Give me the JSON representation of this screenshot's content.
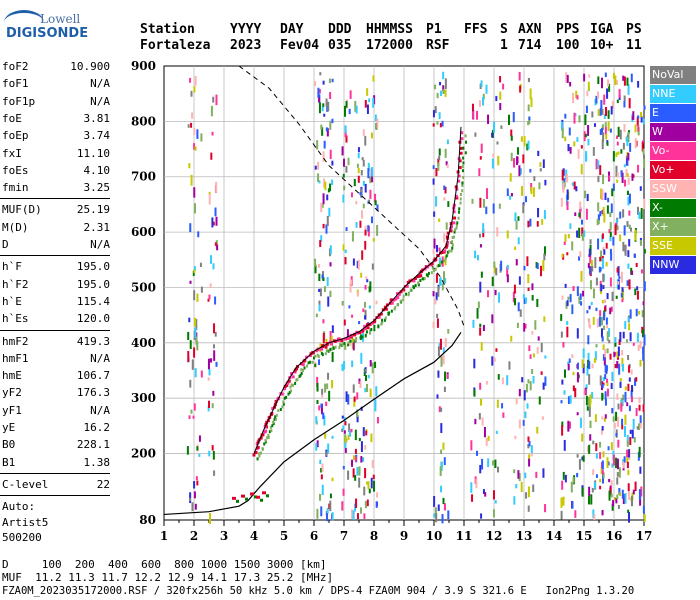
{
  "logo": {
    "top": "Lowell",
    "bottom": "DIGISONDE"
  },
  "header": {
    "labels": [
      "Station",
      "YYYY",
      "DAY",
      "DDD",
      "HHMMSS",
      "P1",
      "FFS",
      "S",
      "AXN",
      "PPS",
      "IGA",
      "PS"
    ],
    "values": [
      "Fortaleza",
      "2023",
      "Fev04",
      "035",
      "172000",
      "RSF",
      "",
      "1",
      "714",
      "100",
      "10+",
      "11"
    ]
  },
  "params": {
    "group1": [
      {
        "k": "foF2",
        "v": "10.900"
      },
      {
        "k": "foF1",
        "v": "N/A"
      },
      {
        "k": "foF1p",
        "v": "N/A"
      },
      {
        "k": "foE",
        "v": "3.81"
      },
      {
        "k": "foEp",
        "v": "3.74"
      },
      {
        "k": "fxI",
        "v": "11.10"
      },
      {
        "k": "foEs",
        "v": "4.10"
      },
      {
        "k": "fmin",
        "v": "3.25"
      }
    ],
    "group2": [
      {
        "k": "MUF(D)",
        "v": "25.19"
      },
      {
        "k": "M(D)",
        "v": "2.31"
      },
      {
        "k": "D",
        "v": "N/A"
      }
    ],
    "group3": [
      {
        "k": "h`F",
        "v": "195.0"
      },
      {
        "k": "h`F2",
        "v": "195.0"
      },
      {
        "k": "h`E",
        "v": "115.4"
      },
      {
        "k": "h`Es",
        "v": "120.0"
      }
    ],
    "group4": [
      {
        "k": "hmF2",
        "v": "419.3"
      },
      {
        "k": "hmF1",
        "v": "N/A"
      },
      {
        "k": "hmE",
        "v": "106.7"
      },
      {
        "k": "yF2",
        "v": "176.3"
      },
      {
        "k": "yF1",
        "v": "N/A"
      },
      {
        "k": "yE",
        "v": "16.2"
      },
      {
        "k": "B0",
        "v": "228.1"
      },
      {
        "k": "B1",
        "v": "1.38"
      }
    ],
    "clevel": {
      "k": "C-level",
      "v": "22"
    },
    "auto": [
      "Auto:",
      "Artist5",
      "500200"
    ]
  },
  "legend": [
    {
      "label": "NoVal",
      "color": "#808080"
    },
    {
      "label": "NNE",
      "color": "#33ccff"
    },
    {
      "label": "E",
      "color": "#2a5cff"
    },
    {
      "label": "W",
      "color": "#a000a0"
    },
    {
      "label": "Vo-",
      "color": "#ff3399"
    },
    {
      "label": "Vo+",
      "color": "#e0002a"
    },
    {
      "label": "SSW",
      "color": "#ffb3b3"
    },
    {
      "label": "X-",
      "color": "#007a00"
    },
    {
      "label": "X+",
      "color": "#80b060"
    },
    {
      "label": "SSE",
      "color": "#c8c800"
    },
    {
      "label": "NNW",
      "color": "#2a2ae0"
    }
  ],
  "footer": {
    "line1": "D     100  200  400  600  800 1000 1500 3000 [km]",
    "line2": "MUF  11.2 11.3 11.7 12.2 12.9 14.1 17.3 25.2 [MHz]",
    "line3": "FZA0M_2023035172000.RSF / 320fx256h 50 kHz 5.0 km / DPS-4 FZA0M 904 / 3.9 S 321.6 E   Ion2Png 1.3.20"
  },
  "chart_data": {
    "type": "scatter",
    "title": "",
    "xlabel": "",
    "ylabel": "",
    "xlim": [
      1,
      17
    ],
    "ylim": [
      80,
      900
    ],
    "xticks": [
      1,
      2,
      3,
      4,
      5,
      6,
      7,
      8,
      9,
      10,
      11,
      12,
      13,
      14,
      15,
      16,
      17
    ],
    "yticks": [
      80,
      200,
      300,
      400,
      500,
      600,
      700,
      800,
      900
    ],
    "grid": true,
    "traces": [
      {
        "f": 4.0,
        "h": 200
      },
      {
        "f": 4.3,
        "h": 240
      },
      {
        "f": 4.6,
        "h": 275
      },
      {
        "f": 5.0,
        "h": 320
      },
      {
        "f": 5.4,
        "h": 355
      },
      {
        "f": 6.0,
        "h": 385
      },
      {
        "f": 6.5,
        "h": 400
      },
      {
        "f": 7.0,
        "h": 408
      },
      {
        "f": 7.5,
        "h": 420
      },
      {
        "f": 8.0,
        "h": 440
      },
      {
        "f": 8.5,
        "h": 470
      },
      {
        "f": 9.0,
        "h": 500
      },
      {
        "f": 9.5,
        "h": 525
      },
      {
        "f": 10.0,
        "h": 548
      },
      {
        "f": 10.4,
        "h": 575
      },
      {
        "f": 10.6,
        "h": 620
      },
      {
        "f": 10.8,
        "h": 700
      },
      {
        "f": 10.9,
        "h": 790
      }
    ],
    "es_trace": [
      {
        "f": 3.3,
        "h": 120
      },
      {
        "f": 3.6,
        "h": 124
      },
      {
        "f": 3.9,
        "h": 128
      },
      {
        "f": 4.1,
        "h": 122
      },
      {
        "f": 4.3,
        "h": 130
      }
    ],
    "profile": [
      {
        "f": 1.0,
        "h": 90
      },
      {
        "f": 2.5,
        "h": 95
      },
      {
        "f": 3.5,
        "h": 105
      },
      {
        "f": 3.8,
        "h": 115
      },
      {
        "f": 4.2,
        "h": 140
      },
      {
        "f": 5.0,
        "h": 185
      },
      {
        "f": 6.0,
        "h": 225
      },
      {
        "f": 7.0,
        "h": 260
      },
      {
        "f": 8.0,
        "h": 298
      },
      {
        "f": 9.0,
        "h": 335
      },
      {
        "f": 10.0,
        "h": 365
      },
      {
        "f": 10.6,
        "h": 395
      },
      {
        "f": 10.9,
        "h": 419
      }
    ],
    "muf_curve": [
      {
        "f": 3.5,
        "h": 900
      },
      {
        "f": 4.5,
        "h": 860
      },
      {
        "f": 5.5,
        "h": 795
      },
      {
        "f": 6.5,
        "h": 720
      },
      {
        "f": 7.5,
        "h": 670
      },
      {
        "f": 8.5,
        "h": 620
      },
      {
        "f": 9.5,
        "h": 570
      },
      {
        "f": 10.2,
        "h": 520
      },
      {
        "f": 10.8,
        "h": 460
      },
      {
        "f": 11.0,
        "h": 430
      }
    ]
  }
}
